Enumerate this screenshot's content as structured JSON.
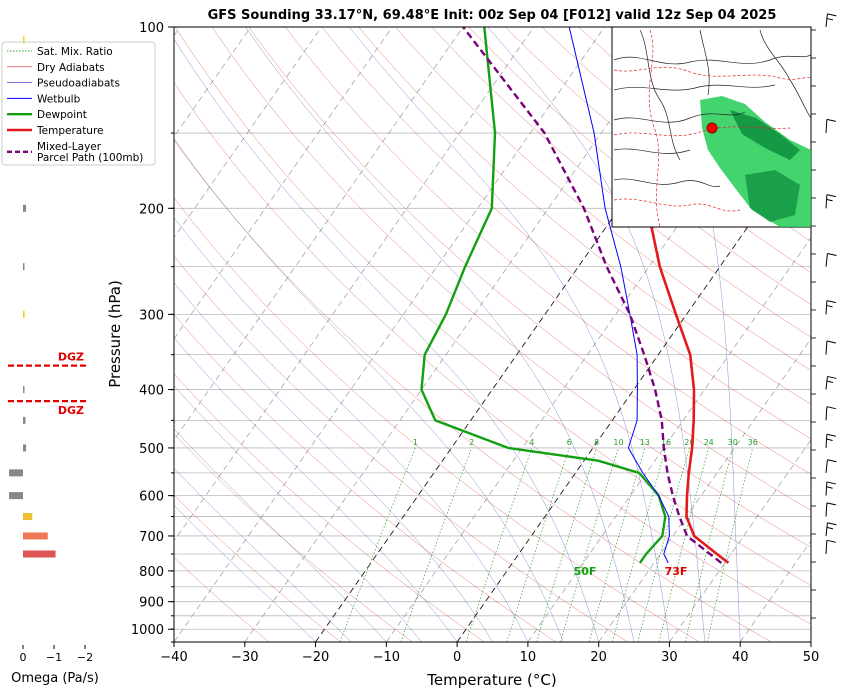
{
  "title": "GFS Sounding 33.17°N, 69.48°E Init: 00z Sep 04 [F012] valid 12z Sep 04 2025",
  "chart_data": {
    "type": "skew-t",
    "title": "GFS Sounding 33.17°N, 69.48°E Init: 00z Sep 04 [F012] valid 12z Sep 04 2025",
    "xlabel": "Temperature (°C)",
    "ylabel": "Pressure (hPa)",
    "xlim": [
      -40,
      50
    ],
    "ylim": [
      1050,
      100
    ],
    "log_y": true,
    "x_ticks": [
      -40,
      -30,
      -20,
      -10,
      0,
      10,
      20,
      30,
      40,
      50
    ],
    "x_tick_labels": [
      "−40",
      "−30",
      "−20",
      "−10",
      "0",
      "10",
      "20",
      "30",
      "40",
      "50"
    ],
    "y_ticks": [
      100,
      200,
      300,
      400,
      500,
      600,
      700,
      800,
      900,
      1000
    ],
    "y_tick_labels": [
      "100",
      "200",
      "300",
      "400",
      "500",
      "600",
      "700",
      "800",
      "900",
      "1000"
    ],
    "grid": true,
    "legend_position": "upper-left, outside axes",
    "legend": [
      {
        "label": "Sat. Mix. Ratio",
        "color": "#2ca02c",
        "style": "dotted"
      },
      {
        "label": "Dry Adiabats",
        "color": "#d62728",
        "style": "thin"
      },
      {
        "label": "Pseudoadiabats",
        "color": "#1f1fbf",
        "style": "thin"
      },
      {
        "label": "Wetbulb",
        "color": "#0000ff",
        "style": "solid"
      },
      {
        "label": "Dewpoint",
        "color": "#11a011",
        "style": "thick"
      },
      {
        "label": "Temperature",
        "color": "#e31a1c",
        "style": "thick"
      },
      {
        "label": "Mixed-Layer\nParcel Path (100mb)",
        "color": "#7b007b",
        "style": "dashed"
      }
    ],
    "series": [
      {
        "name": "Temperature",
        "color": "#e31a1c",
        "points": [
          [
            776,
            30.5
          ],
          [
            750,
            28
          ],
          [
            700,
            23
          ],
          [
            650,
            20
          ],
          [
            600,
            18
          ],
          [
            550,
            16
          ],
          [
            500,
            14
          ],
          [
            450,
            11.5
          ],
          [
            400,
            8.5
          ],
          [
            350,
            4.5
          ],
          [
            300,
            -1.5
          ],
          [
            250,
            -8.5
          ],
          [
            200,
            -16
          ],
          [
            150,
            -25
          ],
          [
            100,
            -38
          ]
        ]
      },
      {
        "name": "Dewpoint",
        "color": "#11a011",
        "points": [
          [
            776,
            18
          ],
          [
            750,
            18
          ],
          [
            700,
            18.5
          ],
          [
            650,
            17
          ],
          [
            600,
            14
          ],
          [
            550,
            9
          ],
          [
            525,
            2
          ],
          [
            500,
            -12
          ],
          [
            450,
            -25
          ],
          [
            400,
            -30
          ],
          [
            350,
            -33
          ],
          [
            300,
            -34
          ],
          [
            250,
            -36
          ],
          [
            200,
            -38
          ],
          [
            150,
            -45
          ],
          [
            100,
            -57
          ]
        ]
      },
      {
        "name": "Wetbulb",
        "color": "#0000ff",
        "points": [
          [
            776,
            22
          ],
          [
            750,
            20.5
          ],
          [
            700,
            19.5
          ],
          [
            650,
            17.5
          ],
          [
            600,
            14
          ],
          [
            550,
            9.5
          ],
          [
            500,
            5
          ],
          [
            450,
            3.5
          ],
          [
            400,
            0.5
          ],
          [
            350,
            -3
          ],
          [
            300,
            -8
          ],
          [
            250,
            -14
          ],
          [
            200,
            -22
          ],
          [
            150,
            -31
          ],
          [
            100,
            -45
          ]
        ]
      },
      {
        "name": "Mixed-Layer Parcel Path (100mb)",
        "color": "#7b007b",
        "points": [
          [
            776,
            29.5
          ],
          [
            700,
            22
          ],
          [
            650,
            19
          ],
          [
            600,
            16
          ],
          [
            550,
            13
          ],
          [
            500,
            10
          ],
          [
            450,
            7
          ],
          [
            400,
            3
          ],
          [
            350,
            -2
          ],
          [
            300,
            -8
          ],
          [
            250,
            -16
          ],
          [
            200,
            -25
          ],
          [
            150,
            -38
          ],
          [
            100,
            -60
          ]
        ]
      }
    ],
    "mixing_ratio_labels": [
      "1",
      "2",
      "4",
      "6",
      "8",
      "10",
      "13",
      "16",
      "20",
      "24",
      "30",
      "36"
    ],
    "mixing_ratio_values": [
      1,
      2,
      4,
      6,
      8,
      10,
      13,
      16,
      20,
      24,
      30,
      36
    ],
    "surface_temperature_label": "73F",
    "surface_dewpoint_label": "50F",
    "omega": {
      "xlabel": "Omega (Pa/s)",
      "x_ticks": [
        0,
        -1,
        -2
      ],
      "x_tick_labels": [
        "0",
        "−1",
        "−2"
      ],
      "dgz_label": "DGZ",
      "dgz_bounds_hpa": [
        365,
        418
      ],
      "bars": [
        {
          "p": 105,
          "value": -0.02,
          "color": "#f0d020"
        },
        {
          "p": 200,
          "value": -0.1,
          "color": "#888888"
        },
        {
          "p": 250,
          "value": -0.03,
          "color": "#888888"
        },
        {
          "p": 300,
          "value": -0.05,
          "color": "#f0d020"
        },
        {
          "p": 400,
          "value": -0.01,
          "color": "#888888"
        },
        {
          "p": 450,
          "value": -0.08,
          "color": "#888888"
        },
        {
          "p": 500,
          "value": -0.1,
          "color": "#888888"
        },
        {
          "p": 550,
          "value": 0.45,
          "color": "#888888"
        },
        {
          "p": 600,
          "value": 0.45,
          "color": "#888888"
        },
        {
          "p": 650,
          "value": -0.3,
          "color": "#f0c030"
        },
        {
          "p": 700,
          "value": -0.8,
          "color": "#ee7755"
        },
        {
          "p": 750,
          "value": -1.05,
          "color": "#dd5555"
        }
      ]
    },
    "wind_barb_pressures_hpa": [
      100,
      150,
      200,
      250,
      300,
      350,
      400,
      450,
      500,
      550,
      600,
      650,
      700,
      750
    ]
  }
}
